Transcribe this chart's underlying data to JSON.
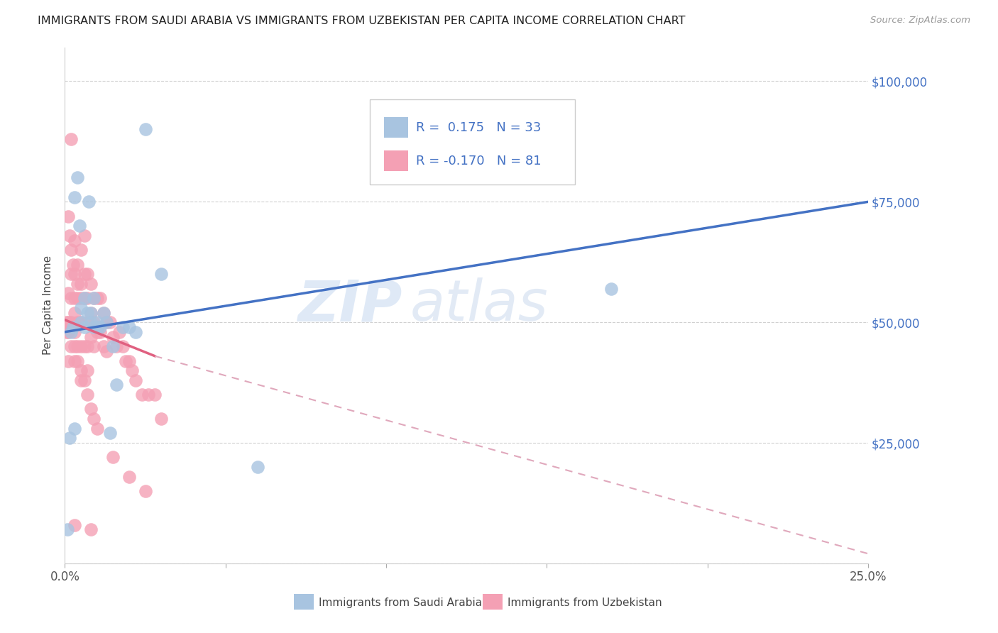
{
  "title": "IMMIGRANTS FROM SAUDI ARABIA VS IMMIGRANTS FROM UZBEKISTAN PER CAPITA INCOME CORRELATION CHART",
  "source": "Source: ZipAtlas.com",
  "ylabel": "Per Capita Income",
  "y_ticks": [
    0,
    25000,
    50000,
    75000,
    100000
  ],
  "y_tick_labels": [
    "",
    "$25,000",
    "$50,000",
    "$75,000",
    "$100,000"
  ],
  "x_range": [
    0.0,
    0.25
  ],
  "y_range": [
    0,
    107000
  ],
  "legend_saudi_r": "0.175",
  "legend_saudi_n": "33",
  "legend_uzbek_r": "-0.170",
  "legend_uzbek_n": "81",
  "saudi_color": "#a8c4e0",
  "uzbek_color": "#f4a0b4",
  "saudi_line_color": "#4472c4",
  "uzbek_line_color": "#e06080",
  "uzbek_dash_color": "#e0a8bc",
  "watermark_zip": "ZIP",
  "watermark_atlas": "atlas",
  "saudi_line": {
    "x0": 0.0,
    "y0": 48000,
    "x1": 0.25,
    "y1": 75000
  },
  "uzbek_solid_line": {
    "x0": 0.0,
    "y0": 50500,
    "x1": 0.028,
    "y1": 43000
  },
  "uzbek_dash_line": {
    "x0": 0.028,
    "y0": 43000,
    "x1": 0.25,
    "y1": 2000
  },
  "saudi_points_x": [
    0.0008,
    0.0015,
    0.002,
    0.0025,
    0.003,
    0.003,
    0.004,
    0.0045,
    0.005,
    0.005,
    0.006,
    0.006,
    0.007,
    0.0075,
    0.008,
    0.008,
    0.009,
    0.009,
    0.01,
    0.01,
    0.011,
    0.012,
    0.013,
    0.014,
    0.015,
    0.016,
    0.018,
    0.02,
    0.022,
    0.025,
    0.03,
    0.17,
    0.06
  ],
  "saudi_points_y": [
    7000,
    26000,
    48000,
    49000,
    28000,
    76000,
    80000,
    70000,
    53000,
    50000,
    49000,
    55000,
    52000,
    75000,
    52000,
    50000,
    49000,
    55000,
    50000,
    49000,
    49000,
    52000,
    50000,
    27000,
    45000,
    37000,
    49000,
    49000,
    48000,
    90000,
    60000,
    57000,
    20000
  ],
  "uzbek_points_x": [
    0.0005,
    0.001,
    0.001,
    0.001,
    0.001,
    0.0015,
    0.002,
    0.002,
    0.002,
    0.002,
    0.0025,
    0.003,
    0.003,
    0.003,
    0.003,
    0.003,
    0.003,
    0.004,
    0.004,
    0.004,
    0.004,
    0.004,
    0.005,
    0.005,
    0.005,
    0.005,
    0.005,
    0.005,
    0.006,
    0.006,
    0.006,
    0.006,
    0.007,
    0.007,
    0.007,
    0.007,
    0.007,
    0.008,
    0.008,
    0.008,
    0.009,
    0.009,
    0.009,
    0.01,
    0.01,
    0.011,
    0.011,
    0.012,
    0.012,
    0.013,
    0.013,
    0.014,
    0.015,
    0.016,
    0.017,
    0.018,
    0.019,
    0.02,
    0.021,
    0.022,
    0.024,
    0.026,
    0.028,
    0.03,
    0.0005,
    0.001,
    0.002,
    0.003,
    0.004,
    0.005,
    0.006,
    0.007,
    0.008,
    0.009,
    0.01,
    0.015,
    0.02,
    0.025,
    0.008,
    0.002,
    0.003
  ],
  "uzbek_points_y": [
    50000,
    72000,
    56000,
    50000,
    48000,
    68000,
    65000,
    60000,
    55000,
    45000,
    62000,
    67000,
    60000,
    55000,
    52000,
    48000,
    42000,
    62000,
    58000,
    55000,
    50000,
    45000,
    65000,
    58000,
    55000,
    50000,
    45000,
    38000,
    68000,
    60000,
    55000,
    45000,
    60000,
    55000,
    50000,
    45000,
    40000,
    58000,
    52000,
    47000,
    55000,
    50000,
    45000,
    55000,
    48000,
    55000,
    48000,
    52000,
    45000,
    50000,
    44000,
    50000,
    47000,
    45000,
    48000,
    45000,
    42000,
    42000,
    40000,
    38000,
    35000,
    35000,
    35000,
    30000,
    48000,
    42000,
    50000,
    45000,
    42000,
    40000,
    38000,
    35000,
    32000,
    30000,
    28000,
    22000,
    18000,
    15000,
    7000,
    88000,
    8000
  ]
}
